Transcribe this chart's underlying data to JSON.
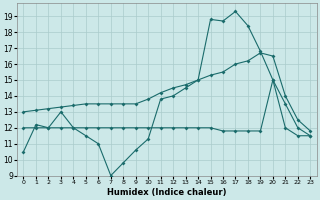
{
  "xlabel": "Humidex (Indice chaleur)",
  "x_ticks": [
    0,
    1,
    2,
    3,
    4,
    5,
    6,
    7,
    8,
    9,
    10,
    11,
    12,
    13,
    14,
    15,
    16,
    17,
    18,
    19,
    20,
    21,
    22,
    23
  ],
  "xlim": [
    -0.5,
    23.5
  ],
  "ylim": [
    9,
    19.8
  ],
  "y_ticks": [
    9,
    10,
    11,
    12,
    13,
    14,
    15,
    16,
    17,
    18,
    19
  ],
  "bg_color": "#cce8e8",
  "grid_color": "#aacccc",
  "line_color": "#1a6b6b",
  "line1_y": [
    10.5,
    12.2,
    12.0,
    13.0,
    12.0,
    11.5,
    11.0,
    9.0,
    9.8,
    10.6,
    11.3,
    13.8,
    14.0,
    14.5,
    15.0,
    18.8,
    18.7,
    19.3,
    18.4,
    16.8,
    15.0,
    12.0,
    11.5,
    11.5
  ],
  "line2_y": [
    13.0,
    13.1,
    13.2,
    13.3,
    13.4,
    13.5,
    13.5,
    13.5,
    13.5,
    13.5,
    13.8,
    14.2,
    14.5,
    14.7,
    15.0,
    15.3,
    15.5,
    16.0,
    16.2,
    16.7,
    16.5,
    14.0,
    12.5,
    11.8
  ],
  "line3_y": [
    12.0,
    12.0,
    12.0,
    12.0,
    12.0,
    12.0,
    12.0,
    12.0,
    12.0,
    12.0,
    12.0,
    12.0,
    12.0,
    12.0,
    12.0,
    12.0,
    11.8,
    11.8,
    11.8,
    11.8,
    15.0,
    13.5,
    12.0,
    11.5
  ]
}
